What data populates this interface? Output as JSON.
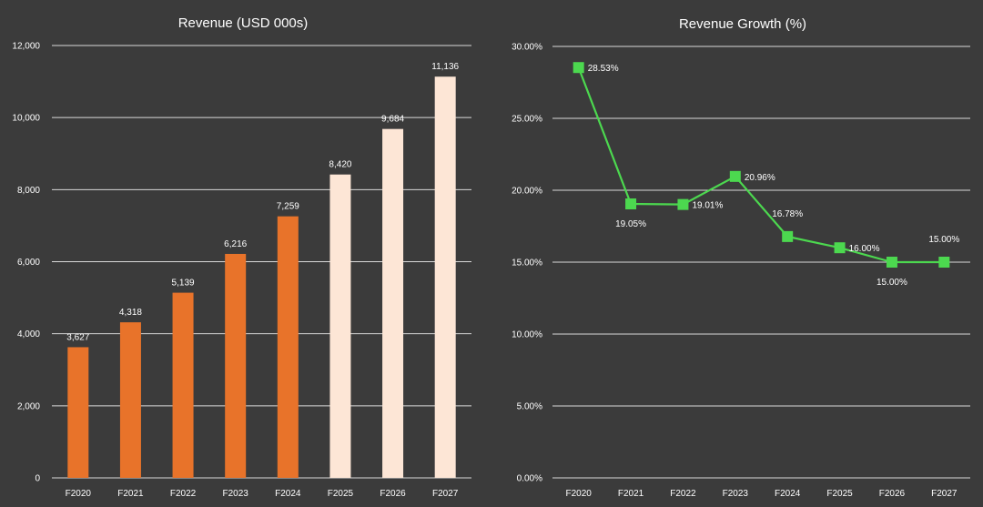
{
  "chart_data": [
    {
      "type": "bar",
      "title": "Revenue (USD 000s)",
      "categories": [
        "F2020",
        "F2021",
        "F2022",
        "F2023",
        "F2024",
        "F2025",
        "F2026",
        "F2027"
      ],
      "values": [
        3627,
        4318,
        5139,
        6216,
        7259,
        8420,
        9684,
        11136
      ],
      "value_labels": [
        "3,627",
        "4,318",
        "5,139",
        "6,216",
        "7,259",
        "8,420",
        "9,684",
        "11,136"
      ],
      "ylim": [
        0,
        12000
      ],
      "yticks": [
        0,
        2000,
        4000,
        6000,
        8000,
        10000,
        12000
      ],
      "ytick_labels": [
        "0",
        "2,000",
        "4,000",
        "6,000",
        "8,000",
        "10,000",
        "12,000"
      ],
      "grid": true,
      "colors": {
        "actual": "#e8732a",
        "forecast": "#fde6d6"
      },
      "bar_kind": [
        "actual",
        "actual",
        "actual",
        "actual",
        "actual",
        "forecast",
        "forecast",
        "forecast"
      ]
    },
    {
      "type": "line",
      "title": "Revenue Growth (%)",
      "categories": [
        "F2020",
        "F2021",
        "F2022",
        "F2023",
        "F2024",
        "F2025",
        "F2026",
        "F2027"
      ],
      "values": [
        28.53,
        19.05,
        19.01,
        20.96,
        16.78,
        16.0,
        15.0,
        15.0
      ],
      "value_labels": [
        "28.53%",
        "19.05%",
        "19.01%",
        "20.96%",
        "16.78%",
        "16.00%",
        "15.00%",
        "15.00%"
      ],
      "label_position": [
        "right",
        "below",
        "right",
        "right",
        "above",
        "right",
        "below",
        "above"
      ],
      "ylim": [
        0,
        30
      ],
      "yticks": [
        0,
        5,
        10,
        15,
        20,
        25,
        30
      ],
      "ytick_labels": [
        "0.00%",
        "5.00%",
        "10.00%",
        "15.00%",
        "20.00%",
        "25.00%",
        "30.00%"
      ],
      "grid": true,
      "colors": {
        "line": "#4cd84f",
        "marker": "#4cd84f"
      },
      "marker": "square"
    }
  ]
}
